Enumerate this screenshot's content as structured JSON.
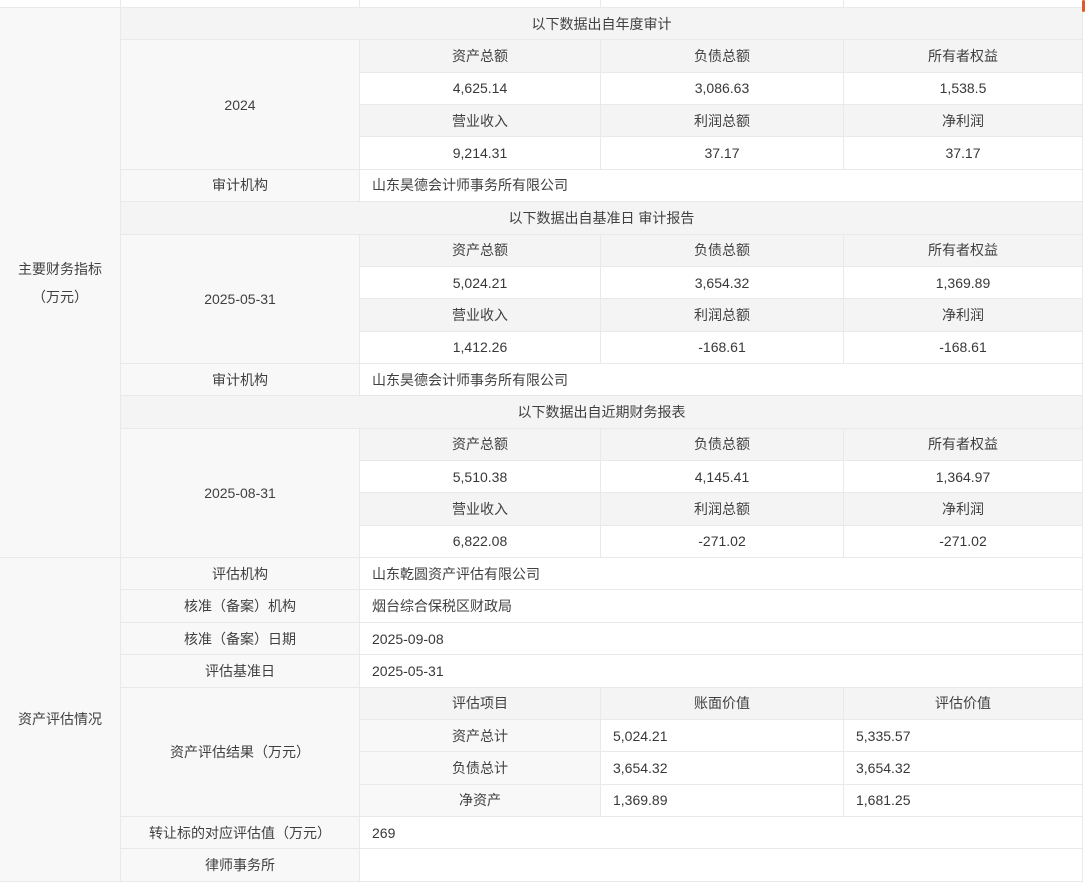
{
  "sidebar": {
    "financial_group_line1": "主要财务指标",
    "financial_group_line2": "（万元）",
    "assessment_group": "资产评估情况"
  },
  "financial": {
    "sections": [
      {
        "header": "以下数据出自年度审计",
        "period": "2024",
        "metric_headers_1": [
          "资产总额",
          "负债总额",
          "所有者权益"
        ],
        "values_1": [
          "4,625.14",
          "3,086.63",
          "1,538.5"
        ],
        "metric_headers_2": [
          "营业收入",
          "利润总额",
          "净利润"
        ],
        "values_2": [
          "9,214.31",
          "37.17",
          "37.17"
        ],
        "audit_label": "审计机构",
        "audit_value": "山东昊德会计师事务所有限公司"
      },
      {
        "header": "以下数据出自基准日 审计报告",
        "period": "2025-05-31",
        "metric_headers_1": [
          "资产总额",
          "负债总额",
          "所有者权益"
        ],
        "values_1": [
          "5,024.21",
          "3,654.32",
          "1,369.89"
        ],
        "metric_headers_2": [
          "营业收入",
          "利润总额",
          "净利润"
        ],
        "values_2": [
          "1,412.26",
          "-168.61",
          "-168.61"
        ],
        "audit_label": "审计机构",
        "audit_value": "山东昊德会计师事务所有限公司"
      },
      {
        "header": "以下数据出自近期财务报表",
        "period": "2025-08-31",
        "metric_headers_1": [
          "资产总额",
          "负债总额",
          "所有者权益"
        ],
        "values_1": [
          "5,510.38",
          "4,145.41",
          "1,364.97"
        ],
        "metric_headers_2": [
          "营业收入",
          "利润总额",
          "净利润"
        ],
        "values_2": [
          "6,822.08",
          "-271.02",
          "-271.02"
        ]
      }
    ]
  },
  "assessment": {
    "rows": [
      {
        "label": "评估机构",
        "value": "山东乾圆资产评估有限公司"
      },
      {
        "label": "核准（备案）机构",
        "value": "烟台综合保税区财政局"
      },
      {
        "label": "核准（备案）日期",
        "value": "2025-09-08"
      },
      {
        "label": "评估基准日",
        "value": "2025-05-31"
      }
    ],
    "result_label": "资产评估结果（万元）",
    "result_table": {
      "headers": [
        "评估项目",
        "账面价值",
        "评估价值"
      ],
      "rows": [
        {
          "item": "资产总计",
          "book_value": "5,024.21",
          "assessed_value": "5,335.57"
        },
        {
          "item": "负债总计",
          "book_value": "3,654.32",
          "assessed_value": "3,654.32"
        },
        {
          "item": "净资产",
          "book_value": "1,369.89",
          "assessed_value": "1,681.25"
        }
      ]
    },
    "transfer_label": "转让标的对应评估值（万元）",
    "transfer_value": "269",
    "law_firm_label": "律师事务所",
    "law_firm_value": ""
  },
  "colors": {
    "accent": "#e2572b",
    "header_bg": "#f4f4f4",
    "label_bg": "#f8f8f8",
    "border": "#e9e9e9"
  }
}
